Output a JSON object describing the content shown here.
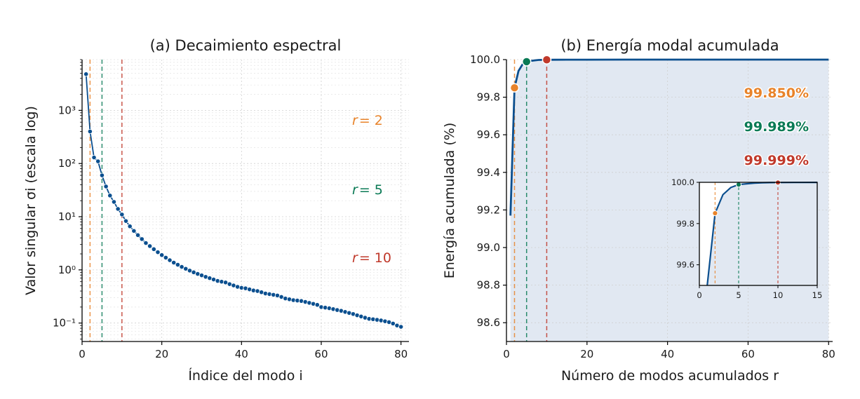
{
  "colors": {
    "series": "#0b4f8f",
    "r2": "#e8832a",
    "r5": "#0a7a55",
    "r10": "#c0392b",
    "fill": "#dfe7f1"
  },
  "panel_a": {
    "title": "(a) Decaimiento espectral",
    "xlabel": "Índice del modo i",
    "ylabel": "Valor singular σi (escala log)",
    "x_ticks": [
      "0",
      "20",
      "40",
      "60",
      "80"
    ],
    "y_ticks": [
      "10³",
      "10²",
      "10¹",
      "10⁰",
      "10⁻¹"
    ],
    "markers": [
      {
        "label": "r = 2",
        "value": 2
      },
      {
        "label": "r = 5",
        "value": 5
      },
      {
        "label": "r = 10",
        "value": 10
      }
    ]
  },
  "panel_b": {
    "title": "(b) Energía modal acumulada",
    "xlabel": "Número de modos acumulados r",
    "ylabel": "Energía acumulada (%)",
    "x_ticks": [
      "0",
      "20",
      "40",
      "60",
      "80"
    ],
    "y_ticks": [
      "100.0",
      "99.8",
      "99.6",
      "99.4",
      "99.2",
      "99.0",
      "98.8",
      "98.6"
    ],
    "percentages": [
      "99.850%",
      "99.989%",
      "99.999%"
    ],
    "inset": {
      "x_ticks": [
        "0",
        "5",
        "10",
        "15"
      ],
      "y_ticks": [
        "100.0",
        "99.8",
        "99.6"
      ]
    }
  },
  "chart_data": [
    {
      "type": "line",
      "title": "(a) Decaimiento espectral",
      "xlabel": "Índice del modo i",
      "ylabel": "Valor singular σi (escala log)",
      "yscale": "log",
      "xlim": [
        0,
        82
      ],
      "ylim": [
        0.045,
        9000
      ],
      "grid": true,
      "x": [
        1,
        2,
        3,
        4,
        5,
        6,
        7,
        8,
        9,
        10,
        11,
        12,
        13,
        14,
        15,
        16,
        17,
        18,
        19,
        20,
        21,
        22,
        23,
        24,
        25,
        26,
        27,
        28,
        29,
        30,
        31,
        32,
        33,
        34,
        35,
        36,
        37,
        38,
        39,
        40,
        41,
        42,
        43,
        44,
        45,
        46,
        47,
        48,
        49,
        50,
        51,
        52,
        53,
        54,
        55,
        56,
        57,
        58,
        59,
        60,
        61,
        62,
        63,
        64,
        65,
        66,
        67,
        68,
        69,
        70,
        71,
        72,
        73,
        74,
        75,
        76,
        77,
        78,
        79,
        80
      ],
      "series": [
        {
          "values": [
            4800,
            400,
            130,
            110,
            60,
            37,
            25,
            19,
            14,
            11,
            8.3,
            6.6,
            5.4,
            4.5,
            3.8,
            3.2,
            2.8,
            2.45,
            2.15,
            1.9,
            1.7,
            1.52,
            1.37,
            1.25,
            1.14,
            1.05,
            0.97,
            0.9,
            0.84,
            0.79,
            0.74,
            0.7,
            0.66,
            0.62,
            0.6,
            0.58,
            0.54,
            0.51,
            0.48,
            0.46,
            0.45,
            0.43,
            0.41,
            0.4,
            0.38,
            0.36,
            0.35,
            0.34,
            0.33,
            0.31,
            0.29,
            0.28,
            0.27,
            0.265,
            0.26,
            0.25,
            0.24,
            0.23,
            0.22,
            0.2,
            0.195,
            0.19,
            0.183,
            0.176,
            0.17,
            0.162,
            0.155,
            0.148,
            0.14,
            0.133,
            0.126,
            0.12,
            0.118,
            0.115,
            0.112,
            0.108,
            0.104,
            0.098,
            0.09,
            0.085
          ]
        }
      ],
      "vlines": [
        2,
        5,
        10
      ]
    },
    {
      "type": "area",
      "title": "(b) Energía modal acumulada",
      "xlabel": "Número de modos acumulados r",
      "ylabel": "Energía acumulada (%)",
      "xlim": [
        0,
        81
      ],
      "ylim": [
        98.5,
        100.0
      ],
      "grid": true,
      "x": [
        1,
        2,
        3,
        4,
        5,
        6,
        7,
        8,
        9,
        10,
        12,
        15,
        20,
        30,
        40,
        50,
        60,
        70,
        80
      ],
      "series": [
        {
          "values": [
            99.17,
            99.85,
            99.94,
            99.975,
            99.989,
            99.993,
            99.996,
            99.998,
            99.9985,
            99.999,
            99.9993,
            99.9996,
            99.9998,
            99.99995,
            99.99998,
            99.99999,
            100.0,
            100.0,
            100.0
          ]
        }
      ],
      "highlight_points": [
        {
          "x": 2,
          "y": 99.85
        },
        {
          "x": 5,
          "y": 99.989
        },
        {
          "x": 10,
          "y": 99.999
        }
      ],
      "inset": {
        "xlim": [
          0,
          15
        ],
        "ylim": [
          99.5,
          100.0
        ]
      }
    }
  ]
}
